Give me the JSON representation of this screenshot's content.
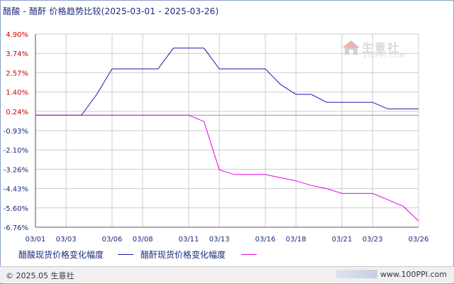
{
  "title": "醋酸 - 醋酐 价格趋势比较(2025-03-01 - 2025-03-26)",
  "watermark": {
    "text": "生意社",
    "sub": "100PPI.COM"
  },
  "footer": {
    "copyright": "© 2025.05 生意社",
    "url": "www.100PPI.com"
  },
  "colors": {
    "axis": "#555555",
    "grid": "#cccccc",
    "tick_text_neg": "#1a2a7a",
    "tick_text_pos": "#cc0000",
    "background": "#ffffff"
  },
  "chart_data": {
    "type": "line",
    "title": "醋酸 - 醋酐 价格趋势比较(2025-03-01 - 2025-03-26)",
    "x": [
      "03/01",
      "03/02",
      "03/03",
      "03/04",
      "03/05",
      "03/06",
      "03/07",
      "03/08",
      "03/09",
      "03/10",
      "03/11",
      "03/12",
      "03/13",
      "03/14",
      "03/15",
      "03/16",
      "03/17",
      "03/18",
      "03/19",
      "03/20",
      "03/21",
      "03/22",
      "03/23",
      "03/24",
      "03/25",
      "03/26"
    ],
    "x_ticks": [
      "03/01",
      "03/03",
      "03/06",
      "03/08",
      "03/11",
      "03/13",
      "03/16",
      "03/18",
      "03/21",
      "03/23",
      "03/26"
    ],
    "y_ticks": [
      "4.90%",
      "3.74%",
      "2.57%",
      "1.40%",
      "0.24%",
      "-0.93%",
      "-2.10%",
      "-3.26%",
      "-4.43%",
      "-5.60%",
      "-6.76%"
    ],
    "ylim": [
      -6.76,
      4.9
    ],
    "grid": true,
    "legend_position": "bottom",
    "series": [
      {
        "name": "醋酸现货价格变化幅度",
        "color": "#1a1aa6",
        "values": [
          0,
          0,
          0,
          0,
          1.26,
          2.8,
          2.8,
          2.8,
          2.8,
          4.05,
          4.05,
          4.05,
          2.8,
          2.8,
          2.8,
          2.8,
          1.85,
          1.26,
          1.26,
          0.78,
          0.78,
          0.78,
          0.78,
          0.38,
          0.38,
          0.38
        ]
      },
      {
        "name": "醋酐现货价格变化幅度",
        "color": "#e600e6",
        "values": [
          0,
          0,
          0,
          0,
          0,
          0,
          0,
          0,
          0,
          0,
          0,
          -0.38,
          -3.3,
          -3.58,
          -3.58,
          -3.58,
          -3.77,
          -3.96,
          -4.24,
          -4.43,
          -4.72,
          -4.72,
          -4.72,
          -5.1,
          -5.5,
          -6.38
        ]
      }
    ]
  }
}
